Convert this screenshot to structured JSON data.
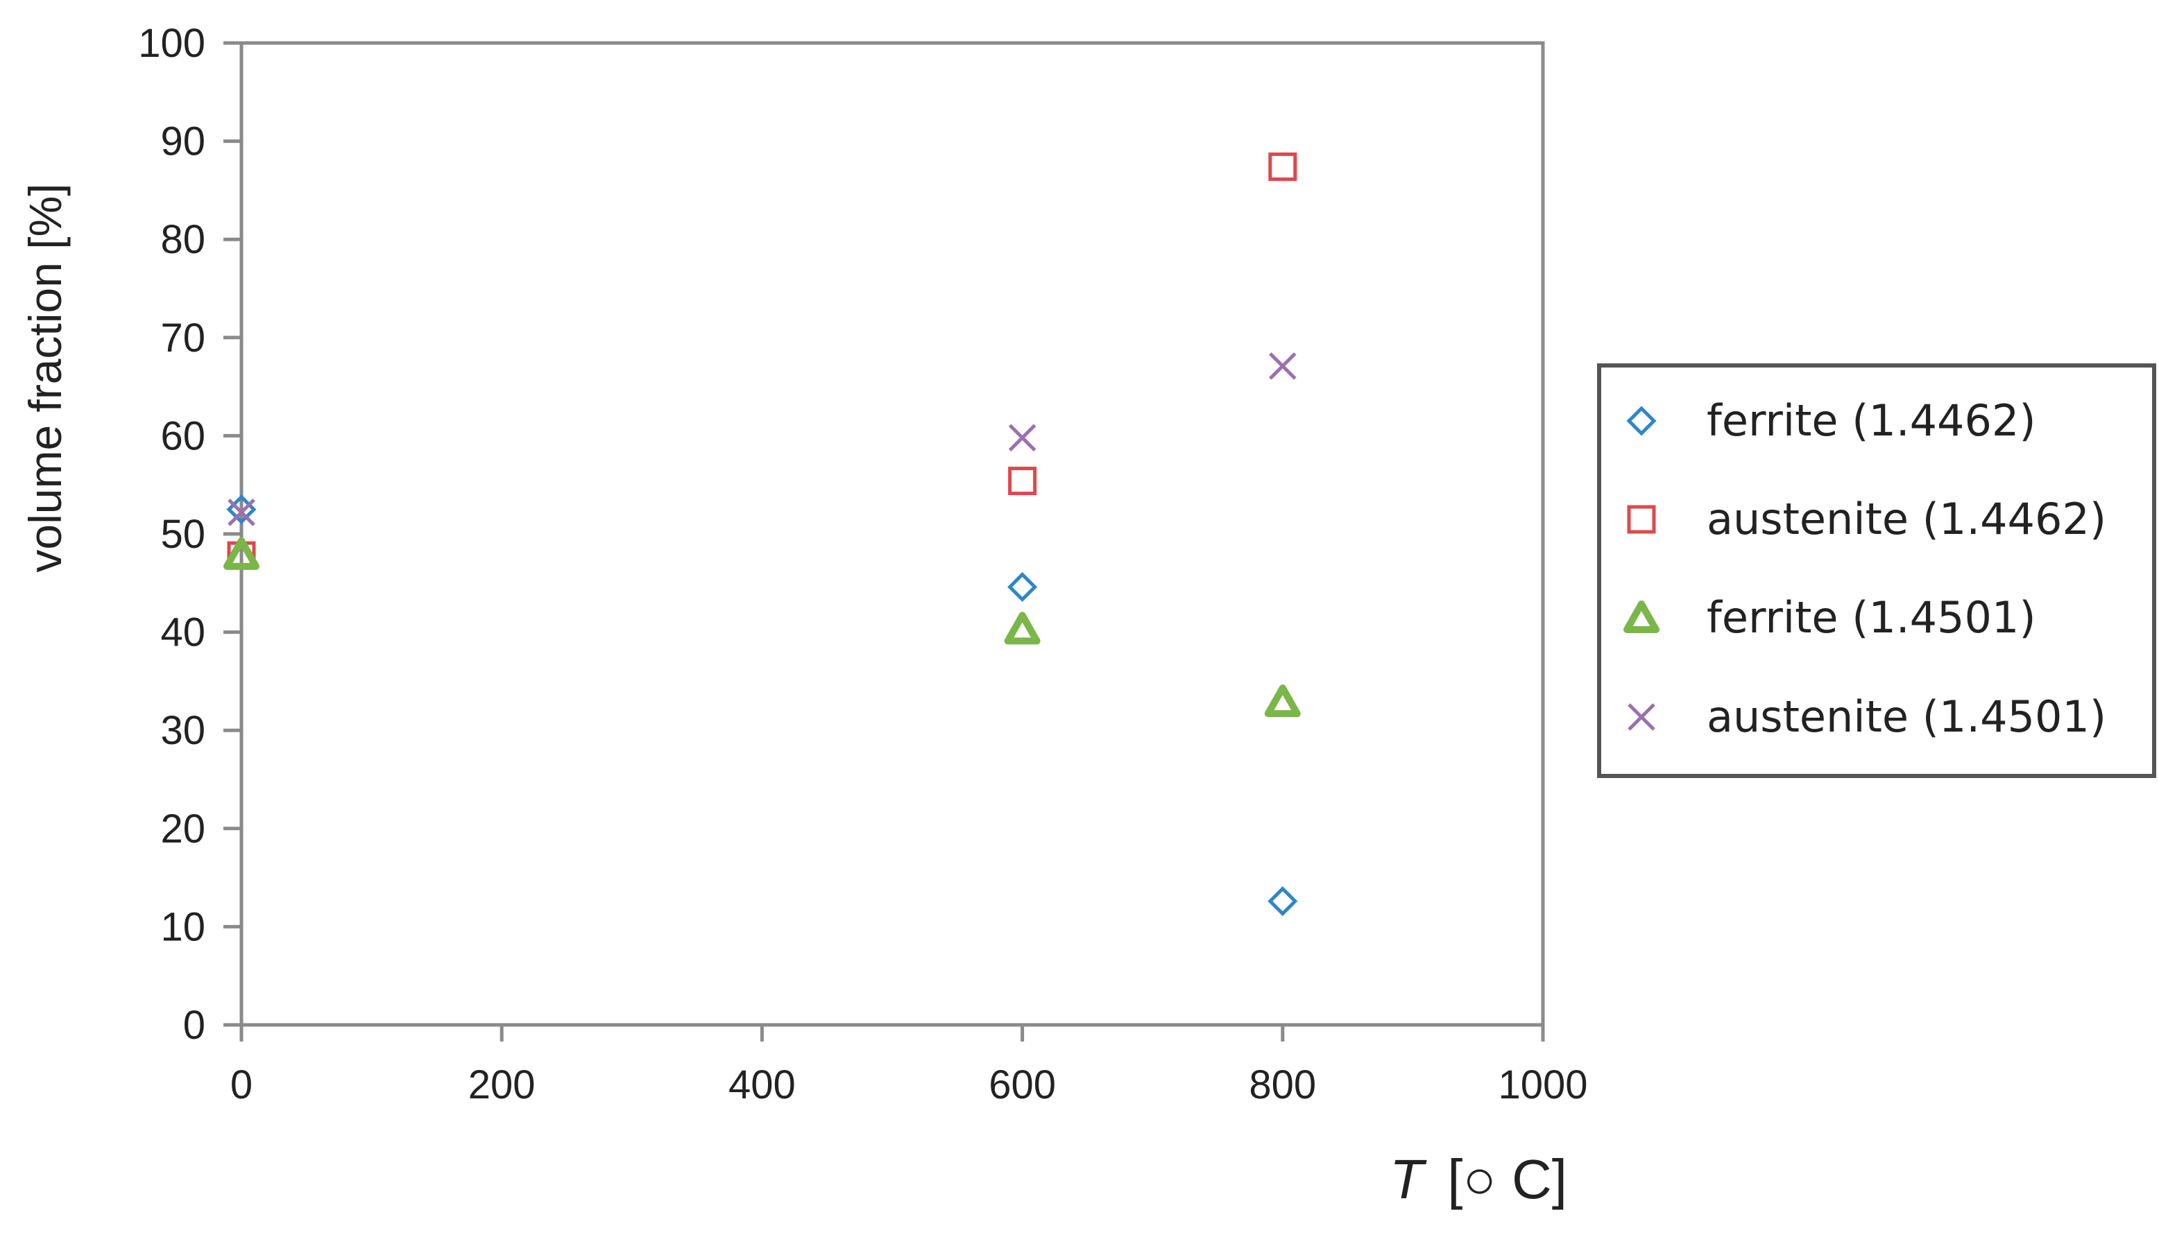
{
  "chart_data": {
    "type": "scatter",
    "title": "",
    "xlabel": {
      "symbol": "T",
      "unit": "[○ C]"
    },
    "ylabel": "volume fraction [%]",
    "xlim": [
      0,
      1000
    ],
    "ylim": [
      0,
      100
    ],
    "x_ticks": [
      "0",
      "200",
      "400",
      "600",
      "800",
      "1000"
    ],
    "y_ticks": [
      "0",
      "10",
      "20",
      "30",
      "40",
      "50",
      "60",
      "70",
      "80",
      "90",
      "100"
    ],
    "grid": false,
    "legend_position": "right",
    "series": [
      {
        "name": "ferrite (1.4462)",
        "marker": "diamond",
        "color": "#2e86c8",
        "points": [
          {
            "x": 0,
            "y": 52.5
          },
          {
            "x": 600,
            "y": 44.6
          },
          {
            "x": 800,
            "y": 12.6
          }
        ]
      },
      {
        "name": "austenite (1.4462)",
        "marker": "square",
        "color": "#e0474c",
        "points": [
          {
            "x": 0,
            "y": 47.8
          },
          {
            "x": 600,
            "y": 55.4
          },
          {
            "x": 800,
            "y": 87.4
          }
        ]
      },
      {
        "name": "ferrite (1.4501)",
        "marker": "triangle",
        "color": "#7ab648",
        "points": [
          {
            "x": 0,
            "y": 47.9
          },
          {
            "x": 600,
            "y": 40.3
          },
          {
            "x": 800,
            "y": 32.9
          }
        ]
      },
      {
        "name": "austenite (1.4501)",
        "marker": "x",
        "color": "#9b6fb0",
        "points": [
          {
            "x": 0,
            "y": 52.2
          },
          {
            "x": 600,
            "y": 59.8
          },
          {
            "x": 800,
            "y": 67.1
          }
        ]
      }
    ]
  }
}
